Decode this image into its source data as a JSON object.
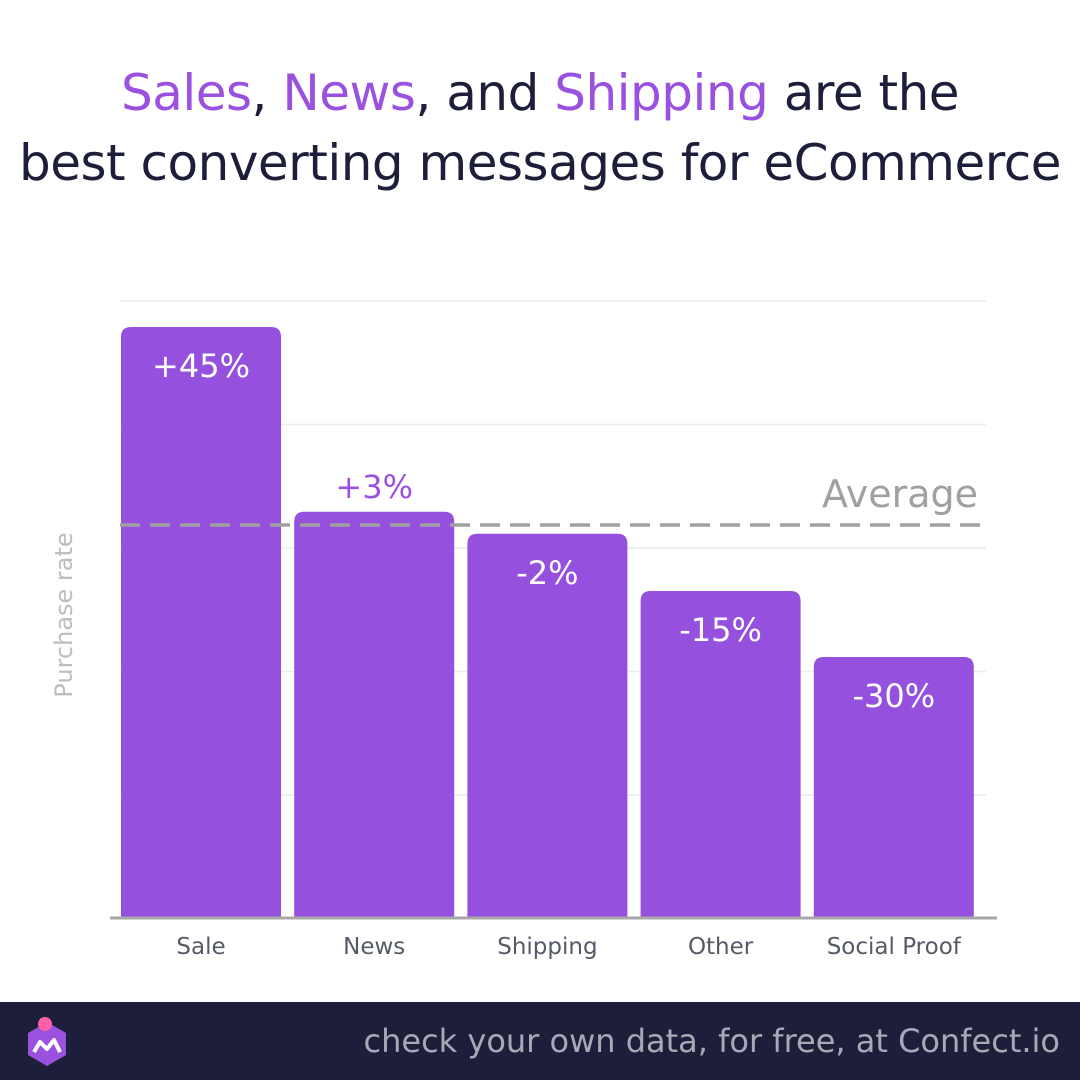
{
  "title": {
    "w1": "Sales",
    "s1": ", ",
    "w2": "News",
    "s2": ", and ",
    "w3": "Shipping",
    "s3": " are the",
    "line2": "best converting messages for eCommerce"
  },
  "colors": {
    "bar": "#9551dd",
    "highlight": "#9b51e0",
    "average_line": "#a0a0a0",
    "title_dark": "#1d1e3a",
    "footer_bg": "#1d1e3a"
  },
  "chart_data": {
    "type": "bar",
    "categories": [
      "Sale",
      "News",
      "Shipping",
      "Other",
      "Social Proof"
    ],
    "values": [
      45,
      3,
      -2,
      -15,
      -30
    ],
    "value_labels": [
      "+45%",
      "+3%",
      "-2%",
      "-15%",
      "-30%"
    ],
    "baseline": 0,
    "ylim": [
      -100,
      55
    ],
    "ylabel": "Purchase rate",
    "reference_line": {
      "label": "Average",
      "value": 0,
      "style": "dashed"
    },
    "grid": true
  },
  "footer": {
    "text": "check your own data, for free, at Confect.io",
    "logo_icon": "confect-logo-icon"
  }
}
